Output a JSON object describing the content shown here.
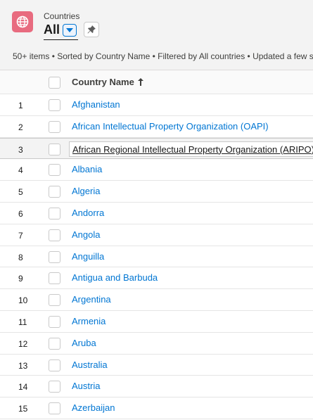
{
  "header": {
    "object_label": "Countries",
    "view_name": "All",
    "icon": "globe-icon",
    "icon_color": "#e86b7f",
    "summary": "50+ items • Sorted by Country Name • Filtered by All countries • Updated a few s"
  },
  "table": {
    "column_header": "Country Name",
    "sort_direction": "ascending",
    "rows": [
      {
        "num": "1",
        "name": "Afghanistan"
      },
      {
        "num": "2",
        "name": "African Intellectual Property Organization (OAPI)"
      },
      {
        "num": "3",
        "name": "African Regional Intellectual Property Organization (ARIPO)"
      },
      {
        "num": "4",
        "name": "Albania"
      },
      {
        "num": "5",
        "name": "Algeria"
      },
      {
        "num": "6",
        "name": "Andorra"
      },
      {
        "num": "7",
        "name": "Angola"
      },
      {
        "num": "8",
        "name": "Anguilla"
      },
      {
        "num": "9",
        "name": "Antigua and Barbuda"
      },
      {
        "num": "10",
        "name": "Argentina"
      },
      {
        "num": "11",
        "name": "Armenia"
      },
      {
        "num": "12",
        "name": "Aruba"
      },
      {
        "num": "13",
        "name": "Australia"
      },
      {
        "num": "14",
        "name": "Austria"
      },
      {
        "num": "15",
        "name": "Azerbaijan"
      }
    ],
    "active_row": 2
  },
  "colors": {
    "link": "#0176d3",
    "accent": "#0176d3"
  }
}
